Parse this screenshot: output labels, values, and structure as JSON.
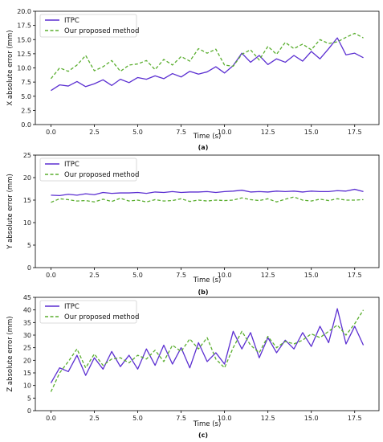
{
  "chart_data": [
    {
      "type": "line",
      "panel_label": "(a)",
      "xlabel": "Time (s)",
      "ylabel": "X absolute error (mm)",
      "xlim": [
        -0.9,
        18.9
      ],
      "ylim": [
        0,
        20
      ],
      "xticks": [
        0.0,
        2.5,
        5.0,
        7.5,
        10.0,
        12.5,
        15.0,
        17.5
      ],
      "xtick_labels": [
        "0.0",
        "2.5",
        "5.0",
        "7.5",
        "10.0",
        "12.5",
        "15.0",
        "17.5"
      ],
      "yticks": [
        0,
        2.5,
        5,
        7.5,
        10,
        12.5,
        15,
        17.5,
        20
      ],
      "ytick_labels": [
        "0.0",
        "2.5",
        "5.0",
        "7.5",
        "10.0",
        "12.5",
        "15.0",
        "17.5",
        "20.0"
      ],
      "grid": false,
      "legend_position": "top-left",
      "series": [
        {
          "name": "ITPC",
          "color": "#5b2fd1",
          "dash": "solid",
          "x": [
            0,
            0.5,
            1.0,
            1.5,
            2.0,
            2.5,
            3.0,
            3.5,
            4.0,
            4.5,
            5.0,
            5.5,
            6.0,
            6.5,
            7.0,
            7.5,
            8.0,
            8.5,
            9.0,
            9.5,
            10.0,
            10.5,
            11.0,
            11.5,
            12.0,
            12.5,
            13.0,
            13.5,
            14.0,
            14.5,
            15.0,
            15.5,
            16.0,
            16.5,
            17.0,
            17.5,
            18.0
          ],
          "values": [
            6.0,
            7.0,
            6.8,
            7.6,
            6.7,
            7.2,
            7.9,
            6.9,
            8.0,
            7.4,
            8.3,
            8.0,
            8.6,
            8.1,
            9.0,
            8.4,
            9.4,
            8.9,
            9.3,
            10.2,
            9.1,
            10.4,
            12.6,
            11.0,
            12.2,
            10.6,
            11.6,
            11.0,
            12.2,
            11.2,
            12.9,
            11.6,
            13.4,
            15.3,
            12.3,
            12.6,
            11.8
          ]
        },
        {
          "name": "Our proposed method",
          "color": "#5aae2f",
          "dash": "dashed",
          "x": [
            0,
            0.5,
            1.0,
            1.5,
            2.0,
            2.5,
            3.0,
            3.5,
            4.0,
            4.5,
            5.0,
            5.5,
            6.0,
            6.5,
            7.0,
            7.5,
            8.0,
            8.5,
            9.0,
            9.5,
            10.0,
            10.5,
            11.0,
            11.5,
            12.0,
            12.5,
            13.0,
            13.5,
            14.0,
            14.5,
            15.0,
            15.5,
            16.0,
            16.5,
            17.0,
            17.5,
            18.0
          ],
          "values": [
            8.1,
            10.0,
            9.4,
            10.5,
            12.2,
            9.5,
            10.2,
            11.3,
            9.4,
            10.5,
            10.7,
            11.3,
            9.7,
            11.5,
            10.5,
            12.0,
            11.2,
            13.4,
            12.6,
            13.3,
            10.5,
            10.3,
            12.4,
            13.2,
            11.4,
            13.8,
            12.4,
            14.5,
            13.4,
            14.2,
            13.2,
            15.0,
            14.3,
            14.6,
            15.4,
            16.1,
            15.3
          ]
        }
      ]
    },
    {
      "type": "line",
      "panel_label": "(b)",
      "xlabel": "Time (s)",
      "ylabel": "Y absolute error (mm)",
      "xlim": [
        -0.9,
        18.9
      ],
      "ylim": [
        0,
        25
      ],
      "xticks": [
        0.0,
        2.5,
        5.0,
        7.5,
        10.0,
        12.5,
        15.0,
        17.5
      ],
      "xtick_labels": [
        "0.0",
        "2.5",
        "5.0",
        "7.5",
        "10.0",
        "12.5",
        "15.0",
        "17.5"
      ],
      "yticks": [
        0,
        5,
        10,
        15,
        20,
        25
      ],
      "ytick_labels": [
        "0",
        "5",
        "10",
        "15",
        "20",
        "25"
      ],
      "grid": false,
      "legend_position": "top-left",
      "series": [
        {
          "name": "ITPC",
          "color": "#5b2fd1",
          "dash": "solid",
          "x": [
            0,
            0.5,
            1.0,
            1.5,
            2.0,
            2.5,
            3.0,
            3.5,
            4.0,
            4.5,
            5.0,
            5.5,
            6.0,
            6.5,
            7.0,
            7.5,
            8.0,
            8.5,
            9.0,
            9.5,
            10.0,
            10.5,
            11.0,
            11.5,
            12.0,
            12.5,
            13.0,
            13.5,
            14.0,
            14.5,
            15.0,
            15.5,
            16.0,
            16.5,
            17.0,
            17.5,
            18.0
          ],
          "values": [
            16.1,
            16.0,
            16.3,
            16.1,
            16.4,
            16.2,
            16.7,
            16.5,
            16.6,
            16.6,
            16.7,
            16.5,
            16.8,
            16.7,
            16.9,
            16.7,
            16.8,
            16.8,
            16.9,
            16.7,
            16.9,
            17.0,
            17.2,
            16.8,
            16.9,
            16.8,
            17.0,
            16.9,
            17.0,
            16.8,
            17.0,
            16.9,
            16.9,
            17.1,
            17.0,
            17.4,
            16.9
          ]
        },
        {
          "name": "Our proposed method",
          "color": "#5aae2f",
          "dash": "dashed",
          "x": [
            0,
            0.5,
            1.0,
            1.5,
            2.0,
            2.5,
            3.0,
            3.5,
            4.0,
            4.5,
            5.0,
            5.5,
            6.0,
            6.5,
            7.0,
            7.5,
            8.0,
            8.5,
            9.0,
            9.5,
            10.0,
            10.5,
            11.0,
            11.5,
            12.0,
            12.5,
            13.0,
            13.5,
            14.0,
            14.5,
            15.0,
            15.5,
            16.0,
            16.5,
            17.0,
            17.5,
            18.0
          ],
          "values": [
            14.5,
            15.3,
            15.1,
            14.8,
            14.9,
            14.6,
            15.2,
            14.7,
            15.4,
            14.8,
            15.0,
            14.6,
            15.1,
            14.8,
            14.9,
            15.3,
            14.7,
            15.0,
            14.8,
            15.0,
            14.9,
            15.0,
            15.5,
            15.1,
            14.9,
            15.3,
            14.6,
            15.2,
            15.7,
            15.0,
            14.8,
            15.2,
            14.9,
            15.3,
            15.0,
            15.0,
            15.1
          ]
        }
      ]
    },
    {
      "type": "line",
      "panel_label": "(c)",
      "xlabel": "Time (s)",
      "ylabel": "Z absolute error (mm)",
      "xlim": [
        -0.9,
        18.9
      ],
      "ylim": [
        0,
        45
      ],
      "xticks": [
        0.0,
        2.5,
        5.0,
        7.5,
        10.0,
        12.5,
        15.0,
        17.5
      ],
      "xtick_labels": [
        "0.0",
        "2.5",
        "5.0",
        "7.5",
        "10.0",
        "12.5",
        "15.0",
        "17.5"
      ],
      "yticks": [
        0,
        5,
        10,
        15,
        20,
        25,
        30,
        35,
        40,
        45
      ],
      "ytick_labels": [
        "0",
        "5",
        "10",
        "15",
        "20",
        "25",
        "30",
        "35",
        "40",
        "45"
      ],
      "grid": false,
      "legend_position": "top-left",
      "series": [
        {
          "name": "ITPC",
          "color": "#5b2fd1",
          "dash": "solid",
          "x": [
            0,
            0.5,
            1.0,
            1.5,
            2.0,
            2.5,
            3.0,
            3.5,
            4.0,
            4.5,
            5.0,
            5.5,
            6.0,
            6.5,
            7.0,
            7.5,
            8.0,
            8.5,
            9.0,
            9.5,
            10.0,
            10.5,
            11.0,
            11.5,
            12.0,
            12.5,
            13.0,
            13.5,
            14.0,
            14.5,
            15.0,
            15.5,
            16.0,
            16.5,
            17.0,
            17.5,
            18.0
          ],
          "values": [
            11.0,
            17.0,
            15.5,
            22.0,
            14.0,
            21.0,
            16.5,
            23.5,
            17.5,
            22.0,
            16.5,
            24.5,
            18.0,
            26.0,
            18.5,
            25.0,
            17.0,
            27.0,
            19.5,
            23.0,
            18.5,
            31.5,
            24.5,
            31.0,
            21.0,
            29.0,
            23.0,
            28.0,
            24.5,
            31.0,
            25.5,
            33.5,
            27.0,
            40.5,
            26.5,
            33.5,
            26.0
          ]
        },
        {
          "name": "Our proposed method",
          "color": "#5aae2f",
          "dash": "dashed",
          "x": [
            0,
            0.5,
            1.0,
            1.5,
            2.0,
            2.5,
            3.0,
            3.5,
            4.0,
            4.5,
            5.0,
            5.5,
            6.0,
            6.5,
            7.0,
            7.5,
            8.0,
            8.5,
            9.0,
            9.5,
            10.0,
            10.5,
            11.0,
            11.5,
            12.0,
            12.5,
            13.0,
            13.5,
            14.0,
            14.5,
            15.0,
            15.5,
            16.0,
            16.5,
            17.0,
            17.5,
            18.0
          ],
          "values": [
            7.5,
            15.0,
            19.5,
            24.5,
            17.0,
            22.5,
            18.0,
            20.5,
            21.0,
            19.0,
            22.0,
            20.5,
            24.0,
            19.5,
            26.0,
            23.5,
            28.5,
            24.5,
            29.0,
            20.5,
            17.0,
            25.0,
            31.5,
            26.0,
            23.0,
            29.5,
            25.0,
            27.5,
            26.5,
            28.0,
            30.5,
            29.0,
            31.5,
            34.0,
            30.0,
            34.5,
            40.0
          ]
        }
      ]
    }
  ]
}
